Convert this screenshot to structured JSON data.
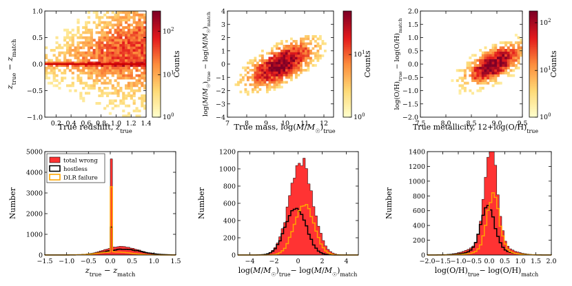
{
  "colors": {
    "cmap_low": "#ffffcc",
    "cmap_mid": "#fd8d3c",
    "cmap_high": "#800026",
    "total_wrong": "#ff3333",
    "hostless": "#000000",
    "dlr_failure": "#ffa500",
    "redshift_line": "#cc0000"
  },
  "chart_data": [
    {
      "type": "heatmap",
      "id": "redshift_hist2d",
      "xlabel": "True redshift, z_true",
      "ylabel": "z_true − z_match",
      "xlim": [
        0.05,
        1.4
      ],
      "ylim": [
        -1.0,
        1.0
      ],
      "xticks": [
        "0.2",
        "0.4",
        "0.6",
        "0.8",
        "1.0",
        "1.2",
        "1.4"
      ],
      "yticks": [
        "−1.0",
        "−0.5",
        "0.0",
        "0.5",
        "1.0"
      ],
      "colorbar_label": "Counts",
      "colorbar_range": [
        1,
        300
      ],
      "colorbar_ticks": [
        "10^0",
        "10^1",
        "10^2"
      ],
      "horizontal_line_at": 0.0,
      "density": "wedge: spread of z_true − z_match grows from ±0.3 at z=0.1 to ±1 at z=1.4, with a dense streak at 0"
    },
    {
      "type": "heatmap",
      "id": "mass_hist2d",
      "xlabel": "True mass, log(M/M☉)true",
      "ylabel": "log(M/M☉)true − log(M/M☉)match",
      "xlim": [
        7,
        12.5
      ],
      "ylim": [
        -4,
        4
      ],
      "xticks": [
        "7",
        "8",
        "9",
        "10",
        "11",
        "12"
      ],
      "yticks": [
        "−4",
        "−3",
        "−2",
        "−1",
        "0",
        "1",
        "2",
        "3",
        "4"
      ],
      "colorbar_label": "Counts",
      "colorbar_range": [
        1,
        50
      ],
      "colorbar_ticks": [
        "10^0",
        "10^1"
      ],
      "density": "positive correlation centred near (9.8, 0), slope ~0.6"
    },
    {
      "type": "heatmap",
      "id": "metallicity_hist2d",
      "xlabel": "True metallicity, 12+log(O/H)true",
      "ylabel": "log(O/H)true − log(O/H)match",
      "xlim": [
        7.5,
        9.5
      ],
      "ylim": [
        -2.0,
        2.0
      ],
      "xticks": [
        "7.5",
        "8.0",
        "8.5",
        "9.0",
        "9.5"
      ],
      "yticks": [
        "−2.0",
        "−1.5",
        "−1.0",
        "−0.5",
        "0.0",
        "0.5",
        "1.0",
        "1.5",
        "2.0"
      ],
      "colorbar_label": "Counts",
      "colorbar_range": [
        1,
        150
      ],
      "colorbar_ticks": [
        "10^0",
        "10^1",
        "10^2"
      ],
      "density": "correlated cloud centred near (8.95, 0)"
    },
    {
      "type": "bar",
      "id": "redshift_residual_hist",
      "xlabel": "z_true − z_match",
      "ylabel": "Number",
      "xlim": [
        -1.5,
        1.5
      ],
      "ylim": [
        0,
        5000
      ],
      "xticks": [
        "−1.5",
        "−1.0",
        "−0.5",
        "0.0",
        "0.5",
        "1.0",
        "1.5"
      ],
      "yticks": [
        "0",
        "1000",
        "2000",
        "3000",
        "4000",
        "5000"
      ],
      "legend": [
        "total wrong",
        "hostless",
        "DLR failure"
      ],
      "legend_position": "top-left",
      "series": [
        {
          "name": "total wrong",
          "style": "filled",
          "peak_x": 0.0,
          "peak_value": 4650,
          "secondary_hump_value": 420
        },
        {
          "name": "hostless",
          "style": "step",
          "peak_x": 0.0,
          "peak_value": 1350,
          "secondary_hump_value": 280
        },
        {
          "name": "DLR failure",
          "style": "step",
          "peak_x": 0.0,
          "peak_value": 3300,
          "secondary_hump_value": 150
        }
      ]
    },
    {
      "type": "bar",
      "id": "mass_residual_hist",
      "xlabel": "log(M/M☉)true − log(M/M☉)match",
      "ylabel": "Number",
      "xlim": [
        -5,
        5
      ],
      "ylim": [
        0,
        1200
      ],
      "xticks": [
        "−4",
        "−2",
        "0",
        "2",
        "4"
      ],
      "yticks": [
        "0",
        "200",
        "400",
        "600",
        "800",
        "1000",
        "1200"
      ],
      "series": [
        {
          "name": "total wrong",
          "style": "filled",
          "peak_x": 0.25,
          "peak_value": 1100
        },
        {
          "name": "hostless",
          "style": "step",
          "peak_x": -0.2,
          "peak_value": 560
        },
        {
          "name": "DLR failure",
          "style": "step",
          "peak_x": 0.5,
          "peak_value": 600
        }
      ]
    },
    {
      "type": "bar",
      "id": "metallicity_residual_hist",
      "xlabel": "log(O/H)true − log(O/H)match",
      "ylabel": "Number",
      "xlim": [
        -2.0,
        2.0
      ],
      "ylim": [
        0,
        1400
      ],
      "xticks": [
        "−2.0",
        "−1.5",
        "−1.0",
        "−0.5",
        "0.0",
        "0.5",
        "1.0",
        "1.5",
        "2.0"
      ],
      "yticks": [
        "0",
        "200",
        "400",
        "600",
        "800",
        "1000",
        "1200",
        "1400"
      ],
      "series": [
        {
          "name": "total wrong",
          "style": "filled",
          "peak_x": 0.05,
          "peak_value": 1330
        },
        {
          "name": "hostless",
          "style": "step",
          "peak_x": -0.05,
          "peak_value": 600
        },
        {
          "name": "DLR failure",
          "style": "step",
          "peak_x": 0.12,
          "peak_value": 740
        }
      ]
    }
  ]
}
